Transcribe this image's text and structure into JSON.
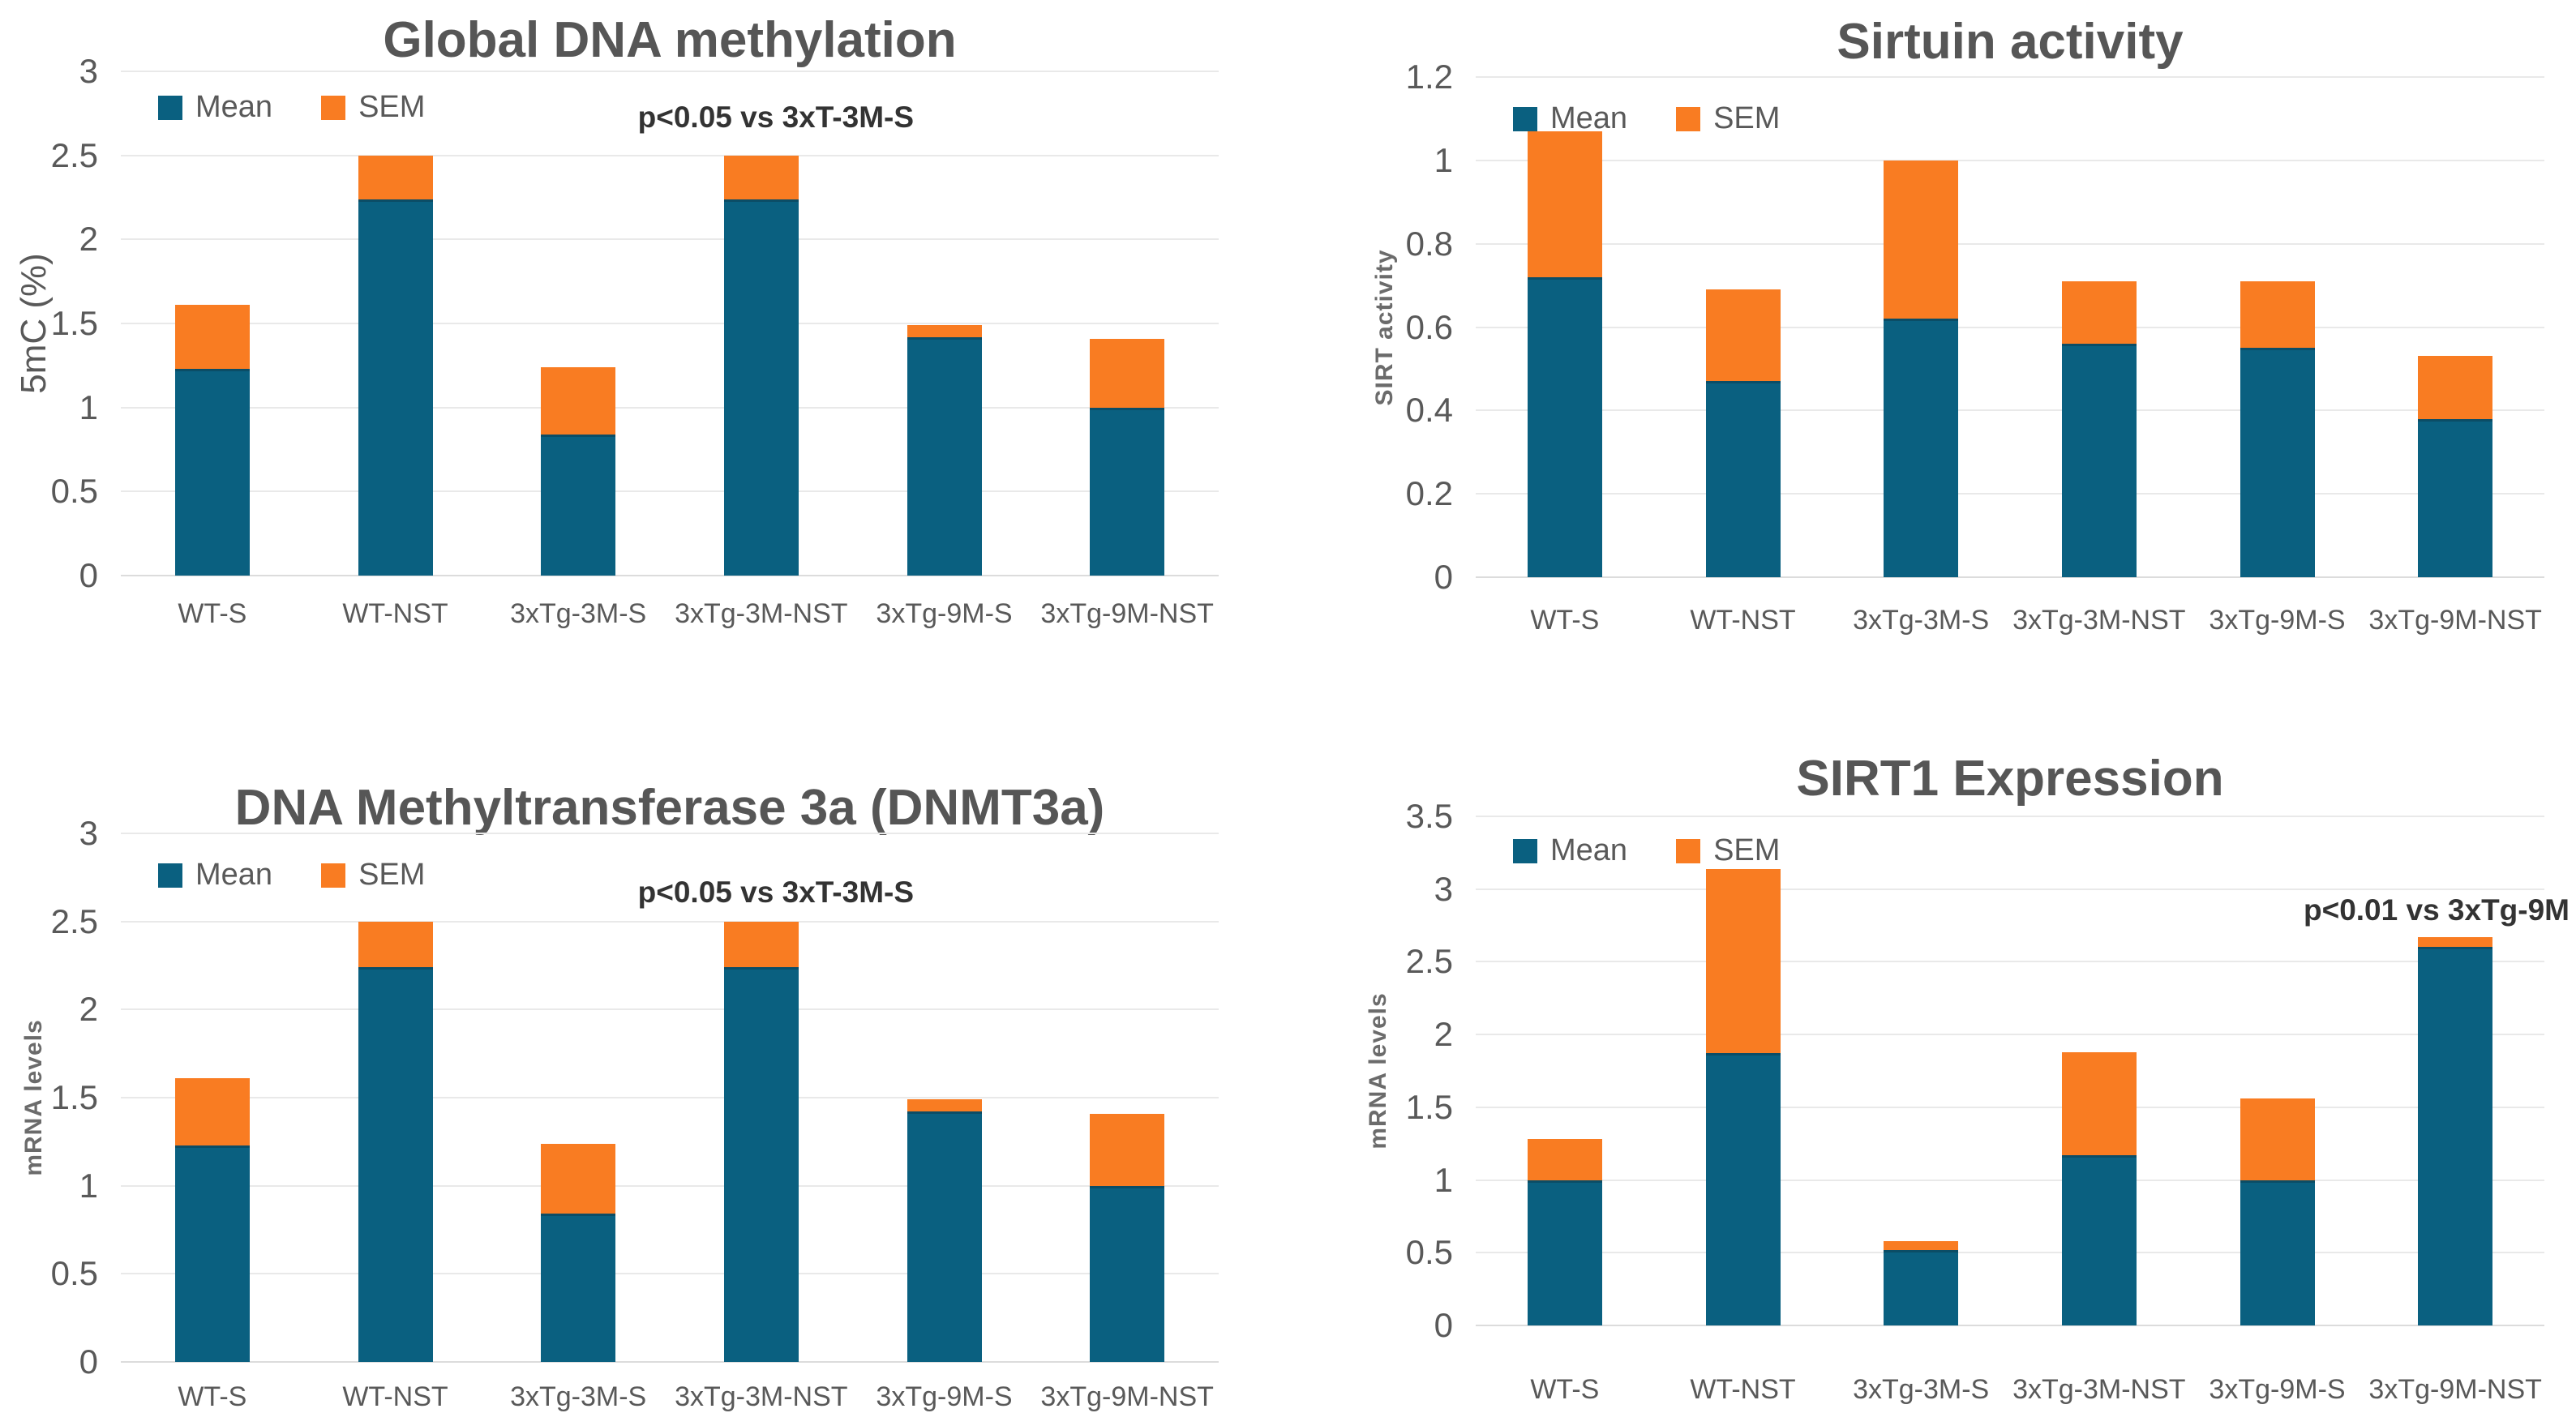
{
  "page": {
    "background": "#ffffff"
  },
  "colors": {
    "mean": "#0A6080",
    "sem": "#F97C22",
    "mean_border": "#0B4D66",
    "gridline": "#E9E9E9",
    "axis_text": "#595959",
    "title_text": "#565656"
  },
  "legend": {
    "mean_label": "Mean",
    "sem_label": "SEM"
  },
  "categories": [
    "WT-S",
    "WT-NST",
    "3xTg-3M-S",
    "3xTg-3M-NST",
    "3xTg-9M-S",
    "3xTg-9M-NST"
  ],
  "chart_data": [
    {
      "type": "bar",
      "stacked": true,
      "title": "Global DNA methylation",
      "xlabel": "",
      "ylabel": "5mC (%)",
      "ylim": [
        0,
        3
      ],
      "yticks": [
        "0",
        "0.5",
        "1",
        "1.5",
        "2",
        "2.5",
        "3"
      ],
      "grid": true,
      "legend_position": "top-left",
      "categories": [
        "WT-S",
        "WT-NST",
        "3xTg-3M-S",
        "3xTg-3M-NST",
        "3xTg-9M-S",
        "3xTg-9M-NST"
      ],
      "series": [
        {
          "name": "Mean",
          "values": [
            1.23,
            2.24,
            0.84,
            2.24,
            1.42,
            1.0
          ]
        },
        {
          "name": "SEM",
          "values": [
            0.38,
            0.26,
            0.4,
            0.26,
            0.07,
            0.41
          ]
        }
      ],
      "stack_totals": [
        1.61,
        2.5,
        1.24,
        2.5,
        1.49,
        1.41
      ],
      "annotation": {
        "text": "p<0.05 vs 3xT-3M-S",
        "y_value": 2.72,
        "anchor_category_index": 3
      }
    },
    {
      "type": "bar",
      "stacked": true,
      "title": "Sirtuin activity",
      "xlabel": "",
      "ylabel": "SIRT activity",
      "ylim": [
        0,
        1.2
      ],
      "yticks": [
        "0",
        "0.2",
        "0.4",
        "0.6",
        "0.8",
        "1",
        "1.2"
      ],
      "grid": true,
      "legend_position": "top-left",
      "categories": [
        "WT-S",
        "WT-NST",
        "3xTg-3M-S",
        "3xTg-3M-NST",
        "3xTg-9M-S",
        "3xTg-9M-NST"
      ],
      "series": [
        {
          "name": "Mean",
          "values": [
            0.72,
            0.47,
            0.62,
            0.56,
            0.55,
            0.38
          ]
        },
        {
          "name": "SEM",
          "values": [
            0.35,
            0.22,
            0.38,
            0.15,
            0.16,
            0.15
          ]
        }
      ],
      "stack_totals": [
        1.07,
        0.69,
        1.0,
        0.71,
        0.71,
        0.53
      ],
      "annotation": null
    },
    {
      "type": "bar",
      "stacked": true,
      "title": "DNA Methyltransferase 3a (DNMT3a)",
      "xlabel": "",
      "ylabel": "mRNA levels",
      "ylim": [
        0,
        3
      ],
      "yticks": [
        "0",
        "0.5",
        "1",
        "1.5",
        "2",
        "2.5",
        "3"
      ],
      "grid": true,
      "legend_position": "top-left",
      "categories": [
        "WT-S",
        "WT-NST",
        "3xTg-3M-S",
        "3xTg-3M-NST",
        "3xTg-9M-S",
        "3xTg-9M-NST"
      ],
      "series": [
        {
          "name": "Mean",
          "values": [
            1.23,
            2.24,
            0.84,
            2.24,
            1.42,
            1.0
          ]
        },
        {
          "name": "SEM",
          "values": [
            0.38,
            0.26,
            0.4,
            0.26,
            0.07,
            0.41
          ]
        }
      ],
      "stack_totals": [
        1.61,
        2.5,
        1.24,
        2.5,
        1.49,
        1.41
      ],
      "annotation": {
        "text": "p<0.05 vs 3xT-3M-S",
        "y_value": 2.66,
        "anchor_category_index": 3
      }
    },
    {
      "type": "bar",
      "stacked": true,
      "title": "SIRT1 Expression",
      "xlabel": "",
      "ylabel": "mRNA levels",
      "ylim": [
        0,
        3.5
      ],
      "yticks": [
        "0",
        "0.5",
        "1",
        "1.5",
        "2",
        "2.5",
        "3",
        "3.5"
      ],
      "grid": true,
      "legend_position": "top-left",
      "categories": [
        "WT-S",
        "WT-NST",
        "3xTg-3M-S",
        "3xTg-3M-NST",
        "3xTg-9M-S",
        "3xTg-9M-NST"
      ],
      "series": [
        {
          "name": "Mean",
          "values": [
            1.0,
            1.87,
            0.52,
            1.17,
            1.0,
            2.6
          ]
        },
        {
          "name": "SEM",
          "values": [
            0.28,
            1.27,
            0.06,
            0.71,
            0.56,
            0.07
          ]
        }
      ],
      "stack_totals": [
        1.28,
        3.14,
        0.58,
        1.88,
        1.56,
        2.67
      ],
      "annotation": {
        "text": "p<0.01 vs 3xTg-9M",
        "y_value": 2.85,
        "anchor": "right"
      }
    }
  ]
}
